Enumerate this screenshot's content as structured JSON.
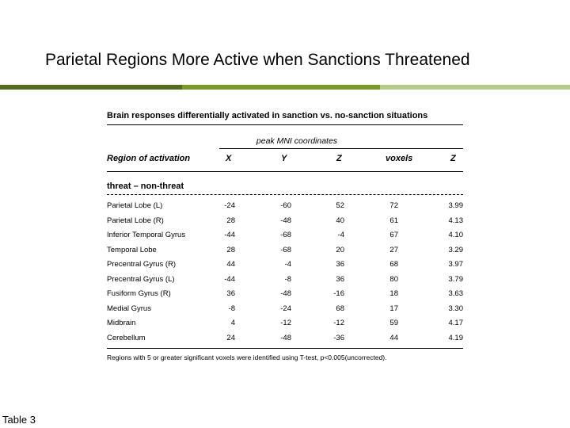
{
  "title": "Parietal Regions More Active when Sanctions Threatened",
  "colors": {
    "bar_dark": "#556b1e",
    "bar_mid": "#7a9a2a",
    "bar_light": "#b5c98a"
  },
  "table": {
    "caption": "Brain responses differentially activated in sanction vs. no-sanction situations",
    "peak_label": "peak MNI coordinates",
    "headers": [
      "Region of activation",
      "X",
      "Y",
      "Z",
      "voxels",
      "Z"
    ],
    "section": "threat – non-threat",
    "rows": [
      {
        "region": "Parietal Lobe (L)",
        "x": "-24",
        "y": "-60",
        "z": "52",
        "voxels": "72",
        "zscore": "3.99"
      },
      {
        "region": "Parietal Lobe (R)",
        "x": "28",
        "y": "-48",
        "z": "40",
        "voxels": "61",
        "zscore": "4.13"
      },
      {
        "region": "Inferior Temporal Gyrus",
        "x": "-44",
        "y": "-68",
        "z": "-4",
        "voxels": "67",
        "zscore": "4.10"
      },
      {
        "region": "Temporal Lobe",
        "x": "28",
        "y": "-68",
        "z": "20",
        "voxels": "27",
        "zscore": "3.29"
      },
      {
        "region": "Precentral Gyrus (R)",
        "x": "44",
        "y": "-4",
        "z": "36",
        "voxels": "68",
        "zscore": "3.97"
      },
      {
        "region": "Precentral Gyrus (L)",
        "x": "-44",
        "y": "-8",
        "z": "36",
        "voxels": "80",
        "zscore": "3.79"
      },
      {
        "region": "Fusiform Gyrus (R)",
        "x": "36",
        "y": "-48",
        "z": "-16",
        "voxels": "18",
        "zscore": "3.63"
      },
      {
        "region": "Medial Gyrus",
        "x": "-8",
        "y": "-24",
        "z": "68",
        "voxels": "17",
        "zscore": "3.30"
      },
      {
        "region": "Midbrain",
        "x": "4",
        "y": "-12",
        "z": "-12",
        "voxels": "59",
        "zscore": "4.17"
      },
      {
        "region": "Cerebellum",
        "x": "24",
        "y": "-48",
        "z": "-36",
        "voxels": "44",
        "zscore": "4.19"
      }
    ],
    "footnote": "Regions with 5 or greater significant voxels were identified using T-test, p<0.005(uncorrected)."
  },
  "slide_label": "Table 3"
}
